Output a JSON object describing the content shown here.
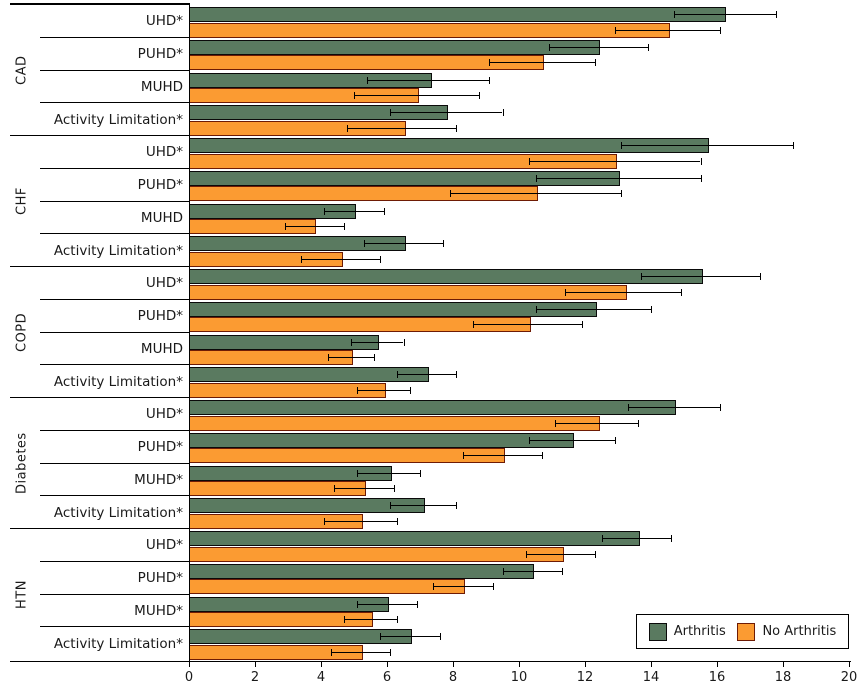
{
  "legend": {
    "items": [
      "Arthritis",
      "No Arthritis"
    ]
  },
  "chart_data": {
    "type": "bar",
    "orientation": "horizontal",
    "xlabel": "",
    "ylabel": "",
    "xlim": [
      0,
      20
    ],
    "x_ticks": [
      0,
      2,
      4,
      6,
      8,
      10,
      12,
      14,
      16,
      18,
      20
    ],
    "grid": false,
    "legend_position": "lower-right",
    "error_bars": true,
    "series": [
      {
        "name": "Arthritis",
        "color": "#5a7a60",
        "border": "#0a0a0a"
      },
      {
        "name": "No Arthritis",
        "color": "#fb9b32",
        "border": "#6e1b04"
      }
    ],
    "groups": [
      {
        "name": "CAD",
        "rows": [
          {
            "label": "UHD*",
            "values": [
              {
                "value": 16.2,
                "ci": [
                  14.7,
                  17.8
                ]
              },
              {
                "value": 14.5,
                "ci": [
                  12.9,
                  16.1
                ]
              }
            ]
          },
          {
            "label": "PUHD*",
            "values": [
              {
                "value": 12.4,
                "ci": [
                  10.9,
                  13.9
                ]
              },
              {
                "value": 10.7,
                "ci": [
                  9.1,
                  12.3
                ]
              }
            ]
          },
          {
            "label": "MUHD",
            "values": [
              {
                "value": 7.3,
                "ci": [
                  5.4,
                  9.1
                ]
              },
              {
                "value": 6.9,
                "ci": [
                  5.0,
                  8.8
                ]
              }
            ]
          },
          {
            "label": "Activity Limitation*",
            "values": [
              {
                "value": 7.8,
                "ci": [
                  6.1,
                  9.5
                ]
              },
              {
                "value": 6.5,
                "ci": [
                  4.8,
                  8.1
                ]
              }
            ]
          }
        ]
      },
      {
        "name": "CHF",
        "rows": [
          {
            "label": "UHD*",
            "values": [
              {
                "value": 15.7,
                "ci": [
                  13.1,
                  18.3
                ]
              },
              {
                "value": 12.9,
                "ci": [
                  10.3,
                  15.5
                ]
              }
            ]
          },
          {
            "label": "PUHD*",
            "values": [
              {
                "value": 13.0,
                "ci": [
                  10.5,
                  15.5
                ]
              },
              {
                "value": 10.5,
                "ci": [
                  7.9,
                  13.1
                ]
              }
            ]
          },
          {
            "label": "MUHD",
            "values": [
              {
                "value": 5.0,
                "ci": [
                  4.1,
                  5.9
                ]
              },
              {
                "value": 3.8,
                "ci": [
                  2.9,
                  4.7
                ]
              }
            ]
          },
          {
            "label": "Activity Limitation*",
            "values": [
              {
                "value": 6.5,
                "ci": [
                  5.3,
                  7.7
                ]
              },
              {
                "value": 4.6,
                "ci": [
                  3.4,
                  5.8
                ]
              }
            ]
          }
        ]
      },
      {
        "name": "COPD",
        "rows": [
          {
            "label": "UHD*",
            "values": [
              {
                "value": 15.5,
                "ci": [
                  13.7,
                  17.3
                ]
              },
              {
                "value": 13.2,
                "ci": [
                  11.4,
                  14.9
                ]
              }
            ]
          },
          {
            "label": "PUHD*",
            "values": [
              {
                "value": 12.3,
                "ci": [
                  10.5,
                  14.0
                ]
              },
              {
                "value": 10.3,
                "ci": [
                  8.6,
                  11.9
                ]
              }
            ]
          },
          {
            "label": "MUHD",
            "values": [
              {
                "value": 5.7,
                "ci": [
                  4.9,
                  6.5
                ]
              },
              {
                "value": 4.9,
                "ci": [
                  4.2,
                  5.6
                ]
              }
            ]
          },
          {
            "label": "Activity Limitation*",
            "values": [
              {
                "value": 7.2,
                "ci": [
                  6.3,
                  8.1
                ]
              },
              {
                "value": 5.9,
                "ci": [
                  5.1,
                  6.7
                ]
              }
            ]
          }
        ]
      },
      {
        "name": "Diabetes",
        "rows": [
          {
            "label": "UHD*",
            "values": [
              {
                "value": 14.7,
                "ci": [
                  13.3,
                  16.1
                ]
              },
              {
                "value": 12.4,
                "ci": [
                  11.1,
                  13.6
                ]
              }
            ]
          },
          {
            "label": "PUHD*",
            "values": [
              {
                "value": 11.6,
                "ci": [
                  10.3,
                  12.9
                ]
              },
              {
                "value": 9.5,
                "ci": [
                  8.3,
                  10.7
                ]
              }
            ]
          },
          {
            "label": "MUHD*",
            "values": [
              {
                "value": 6.1,
                "ci": [
                  5.1,
                  7.0
                ]
              },
              {
                "value": 5.3,
                "ci": [
                  4.4,
                  6.2
                ]
              }
            ]
          },
          {
            "label": "Activity Limitation*",
            "values": [
              {
                "value": 7.1,
                "ci": [
                  6.1,
                  8.1
                ]
              },
              {
                "value": 5.2,
                "ci": [
                  4.1,
                  6.3
                ]
              }
            ]
          }
        ]
      },
      {
        "name": "HTN",
        "rows": [
          {
            "label": "UHD*",
            "values": [
              {
                "value": 13.6,
                "ci": [
                  12.5,
                  14.6
                ]
              },
              {
                "value": 11.3,
                "ci": [
                  10.2,
                  12.3
                ]
              }
            ]
          },
          {
            "label": "PUHD*",
            "values": [
              {
                "value": 10.4,
                "ci": [
                  9.5,
                  11.3
                ]
              },
              {
                "value": 8.3,
                "ci": [
                  7.4,
                  9.2
                ]
              }
            ]
          },
          {
            "label": "MUHD*",
            "values": [
              {
                "value": 6.0,
                "ci": [
                  5.1,
                  6.9
                ]
              },
              {
                "value": 5.5,
                "ci": [
                  4.7,
                  6.3
                ]
              }
            ]
          },
          {
            "label": "Activity Limitation*",
            "values": [
              {
                "value": 6.7,
                "ci": [
                  5.8,
                  7.6
                ]
              },
              {
                "value": 5.2,
                "ci": [
                  4.3,
                  6.1
                ]
              }
            ]
          }
        ]
      }
    ]
  }
}
